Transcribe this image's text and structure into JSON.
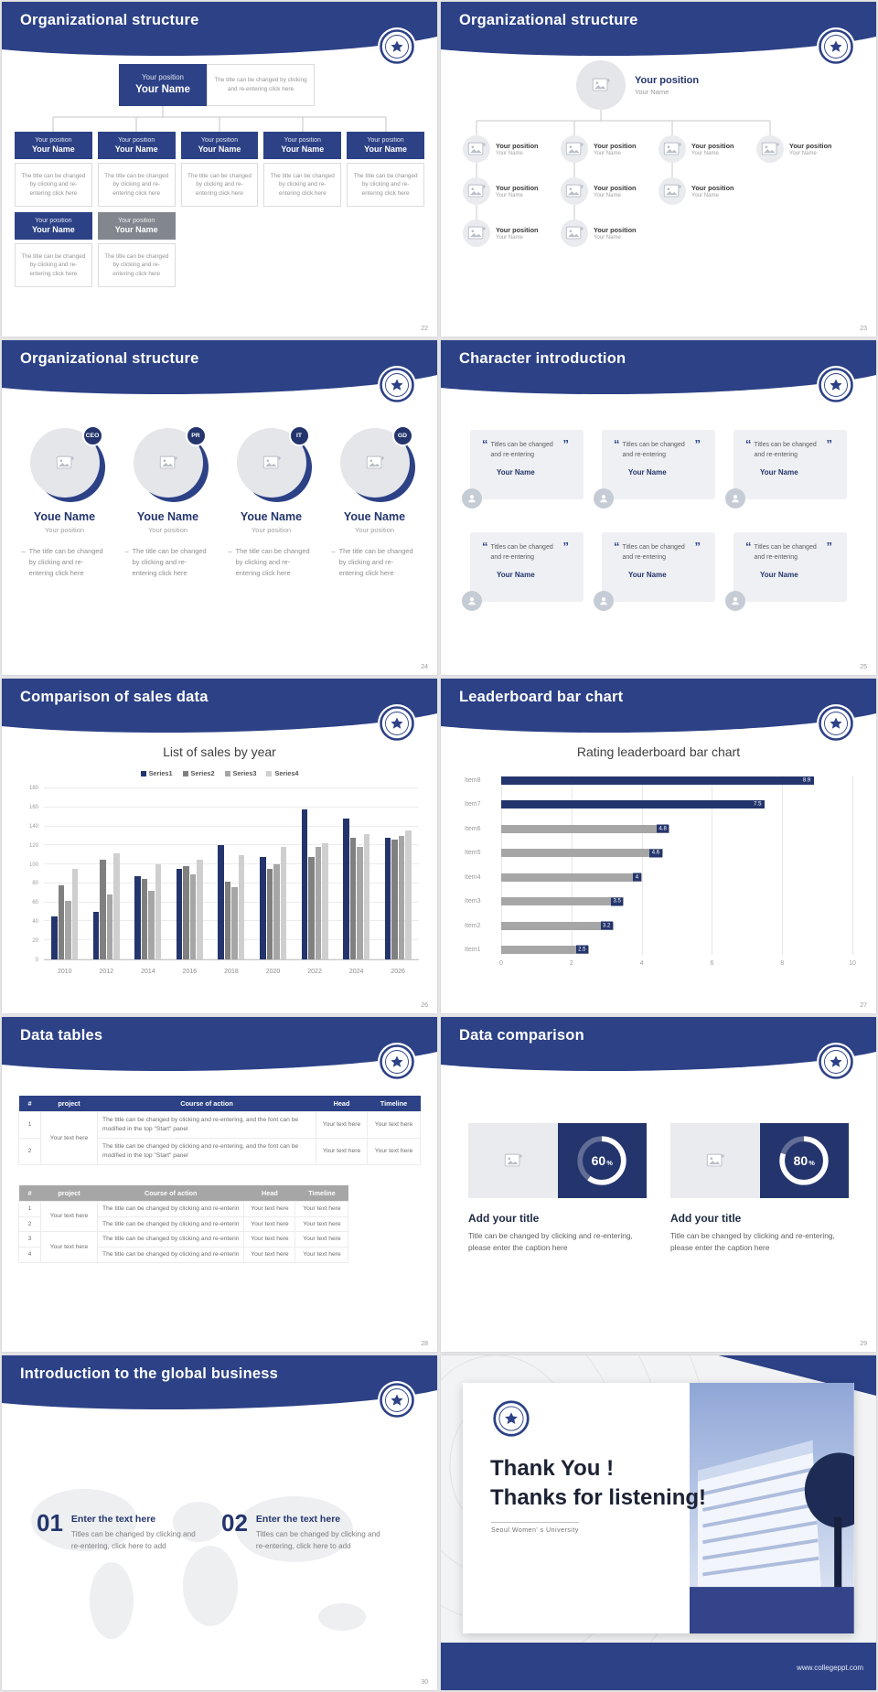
{
  "colors": {
    "navy": "#2c4186",
    "navy_dark": "#24356d",
    "gray_box": "#82878f",
    "bar_gray": "#a6a6a6",
    "card_bg": "#eef0f3"
  },
  "common": {
    "position": "Your position",
    "name": "Your Name",
    "desc": "The title can be changed by clicking and re-entering click here"
  },
  "slides": {
    "s22": {
      "title": "Organizational structure",
      "page": "22",
      "top_desc": "The title can be changed by clicking and re-entering click here"
    },
    "s23": {
      "title": "Organizational structure",
      "page": "23"
    },
    "s24": {
      "title": "Organizational structure",
      "page": "24",
      "members": [
        {
          "badge": "CEO",
          "name": "Youe Name",
          "role": "Your position",
          "desc": "The title can be changed by clicking and re-entering click here"
        },
        {
          "badge": "PR",
          "name": "Youe Name",
          "role": "Your position",
          "desc": "The title can be changed by clicking and re-entering click here"
        },
        {
          "badge": "IT",
          "name": "Youe Name",
          "role": "Your position",
          "desc": "The title can be changed by clicking and re-entering click here"
        },
        {
          "badge": "GD",
          "name": "Youe Name",
          "role": "Your position",
          "desc": "The title can be changed by clicking and re-entering click here"
        }
      ]
    },
    "s25": {
      "title": "Character introduction",
      "page": "25",
      "card_text": "Titles can be changed and re-entering",
      "card_name": "Your Name"
    },
    "s26": {
      "title": "Comparison of sales data",
      "page": "26"
    },
    "s27": {
      "title": "Leaderboard bar chart",
      "page": "27"
    },
    "s28": {
      "title": "Data tables",
      "page": "28",
      "headers": [
        "#",
        "project",
        "Course of action",
        "Head",
        "Timeline"
      ],
      "table1": {
        "rows": [
          "1",
          "2"
        ],
        "project": "Your text here",
        "course": "The title can be changed by clicking and re-entering, and the font can be modified in the top \"Start\" panel",
        "cell": "Your text here"
      },
      "table2": {
        "rows": [
          "1",
          "2",
          "3",
          "4"
        ],
        "project": "Your text here",
        "course": "The title can be changed by clicking and re-enterin",
        "cell": "Your text here"
      }
    },
    "s29": {
      "title": "Data comparison",
      "page": "29",
      "panels": [
        {
          "percent_num": "60",
          "percent_sign": "%",
          "heading": "Add your title",
          "caption": "Title can be changed by clicking and re-entering, please enter the caption here"
        },
        {
          "percent_num": "80",
          "percent_sign": "%",
          "heading": "Add your title",
          "caption": "Title can be changed by clicking and re-entering, please enter the caption here"
        }
      ]
    },
    "s30": {
      "title": "Introduction to the global business",
      "page": "30",
      "items": [
        {
          "num": "01",
          "heading": "Enter the text here",
          "desc": "Titles can be changed by clicking and re-entering, click here to add"
        },
        {
          "num": "02",
          "heading": "Enter the text here",
          "desc": "Titles can be changed by clicking and re-entering, click here to add"
        }
      ]
    },
    "sfinal": {
      "line1": "Thank You !",
      "line2": "Thanks for listening!",
      "subtitle": "Seoul Women' s University",
      "website": "www.collegeppt.com"
    }
  },
  "chart_data": [
    {
      "type": "bar",
      "slide": 26,
      "title": "List of sales by year",
      "categories": [
        "2010",
        "2012",
        "2014",
        "2016",
        "2018",
        "2020",
        "2022",
        "2024",
        "2026"
      ],
      "series": [
        {
          "name": "Series1",
          "color": "#24356d",
          "values": [
            45,
            50,
            88,
            95,
            120,
            108,
            158,
            148,
            128
          ]
        },
        {
          "name": "Series2",
          "color": "#808080",
          "values": [
            78,
            105,
            85,
            98,
            82,
            95,
            108,
            128,
            126
          ]
        },
        {
          "name": "Series3",
          "color": "#a6a6a6",
          "values": [
            62,
            68,
            72,
            90,
            76,
            100,
            118,
            118,
            130
          ]
        },
        {
          "name": "Series4",
          "color": "#cfcfcf",
          "values": [
            95,
            112,
            100,
            105,
            110,
            118,
            122,
            132,
            136
          ]
        }
      ],
      "ylim": [
        0,
        180
      ],
      "yticks": [
        0,
        20,
        40,
        60,
        80,
        100,
        120,
        140,
        160,
        180
      ],
      "legend_position": "top",
      "grid": true
    },
    {
      "type": "bar",
      "orientation": "horizontal",
      "slide": 27,
      "title": "Rating leaderboard bar chart",
      "categories": [
        "Item1",
        "Item2",
        "Item3",
        "Item4",
        "Item5",
        "Item6",
        "Item7",
        "Item8"
      ],
      "values": [
        2.5,
        3.2,
        3.5,
        4,
        4.6,
        4.8,
        7.5,
        8.9
      ],
      "bar_color": "#a6a6a6",
      "highlight_color": "#24356d",
      "highlighted": [
        "Item7",
        "Item8"
      ],
      "xlim": [
        0,
        10
      ],
      "xticks": [
        0,
        2,
        4,
        6,
        8,
        10
      ],
      "grid": true
    },
    {
      "type": "donut",
      "slide": 29,
      "value": 60,
      "label": "60%"
    },
    {
      "type": "donut",
      "slide": 29,
      "value": 80,
      "label": "80%"
    }
  ]
}
